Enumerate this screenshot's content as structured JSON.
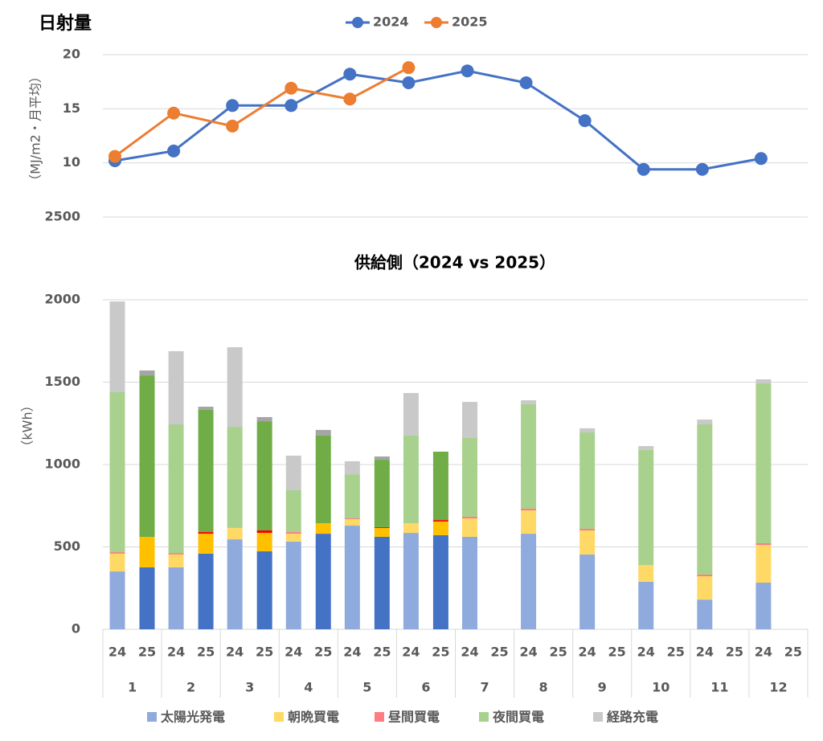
{
  "chart_data": [
    {
      "type": "line",
      "title": "日射量",
      "y_label": "（MJ/m2・月平均）",
      "categories": [
        null,
        null,
        null,
        null,
        null,
        null,
        null,
        null,
        null,
        null,
        null,
        null
      ],
      "ylim": [
        5,
        20
      ],
      "yticks": [
        10,
        15,
        20
      ],
      "grid": true,
      "legend": "top",
      "annotations": [
        "2500"
      ],
      "series": [
        {
          "name": "2024",
          "color": "#4472c4",
          "values": [
            10.2,
            11.1,
            15.3,
            15.3,
            18.2,
            17.4,
            18.5,
            17.4,
            13.9,
            9.4,
            9.4,
            10.4
          ]
        },
        {
          "name": "2025",
          "color": "#ed7d31",
          "values": [
            10.6,
            14.6,
            13.4,
            16.9,
            15.9,
            18.8,
            null,
            null,
            null,
            null,
            null,
            null
          ]
        }
      ]
    },
    {
      "type": "bar",
      "stacked": true,
      "title": "供給側（2024 vs 2025）",
      "y_label": "（kWh）",
      "categories": [
        "24",
        "25",
        "24",
        "25",
        "24",
        "25",
        "24",
        "25",
        "24",
        "25",
        "24",
        "25",
        "24",
        "25",
        "24",
        "25",
        "24",
        "25",
        "24",
        "25",
        "24",
        "25",
        "24",
        "25"
      ],
      "groups": [
        "1",
        "2",
        "3",
        "4",
        "5",
        "6",
        "7",
        "8",
        "9",
        "10",
        "11",
        "12"
      ],
      "ylim": [
        0,
        2000
      ],
      "yticks": [
        0,
        500,
        1000,
        1500,
        2000
      ],
      "grid": true,
      "legend": "bottom",
      "series": [
        {
          "name": "太陽光発電",
          "color": "#8faadc",
          "color_2025": "#4472c4",
          "values": [
            351,
            376,
            376,
            459,
            546,
            473,
            532,
            580,
            629,
            561,
            585,
            571,
            561,
            null,
            580,
            null,
            454,
            null,
            288,
            null,
            180,
            null,
            283,
            null
          ]
        },
        {
          "name": "朝晩買電",
          "color": "#ffd966",
          "color_2025": "#ffc000",
          "values": [
            108,
            185,
            78,
            121,
            69,
            112,
            48,
            64,
            39,
            54,
            59,
            83,
            112,
            null,
            142,
            null,
            146,
            null,
            102,
            null,
            142,
            null,
            229,
            null
          ]
        },
        {
          "name": "昼間買電",
          "color": "#ff7c80",
          "color_2025": "#ff0000",
          "values": [
            9,
            0,
            9,
            10,
            0,
            15,
            10,
            0,
            5,
            5,
            0,
            9,
            10,
            null,
            10,
            null,
            10,
            null,
            0,
            null,
            10,
            null,
            10,
            null
          ]
        },
        {
          "name": "夜間買電",
          "color": "#a9d18e",
          "color_2025": "#70ad47",
          "values": [
            971,
            980,
            781,
            742,
            614,
            663,
            254,
            532,
            268,
            409,
            532,
            415,
            478,
            null,
            634,
            null,
            585,
            null,
            698,
            null,
            912,
            null,
            971,
            null
          ]
        },
        {
          "name": "経路充電",
          "color": "#c9c9c9",
          "color_2025": "#a5a5a5",
          "values": [
            551,
            30,
            444,
            19,
            483,
            25,
            210,
            34,
            79,
            20,
            258,
            0,
            219,
            null,
            24,
            null,
            25,
            null,
            24,
            null,
            29,
            null,
            24,
            null
          ]
        }
      ]
    }
  ]
}
